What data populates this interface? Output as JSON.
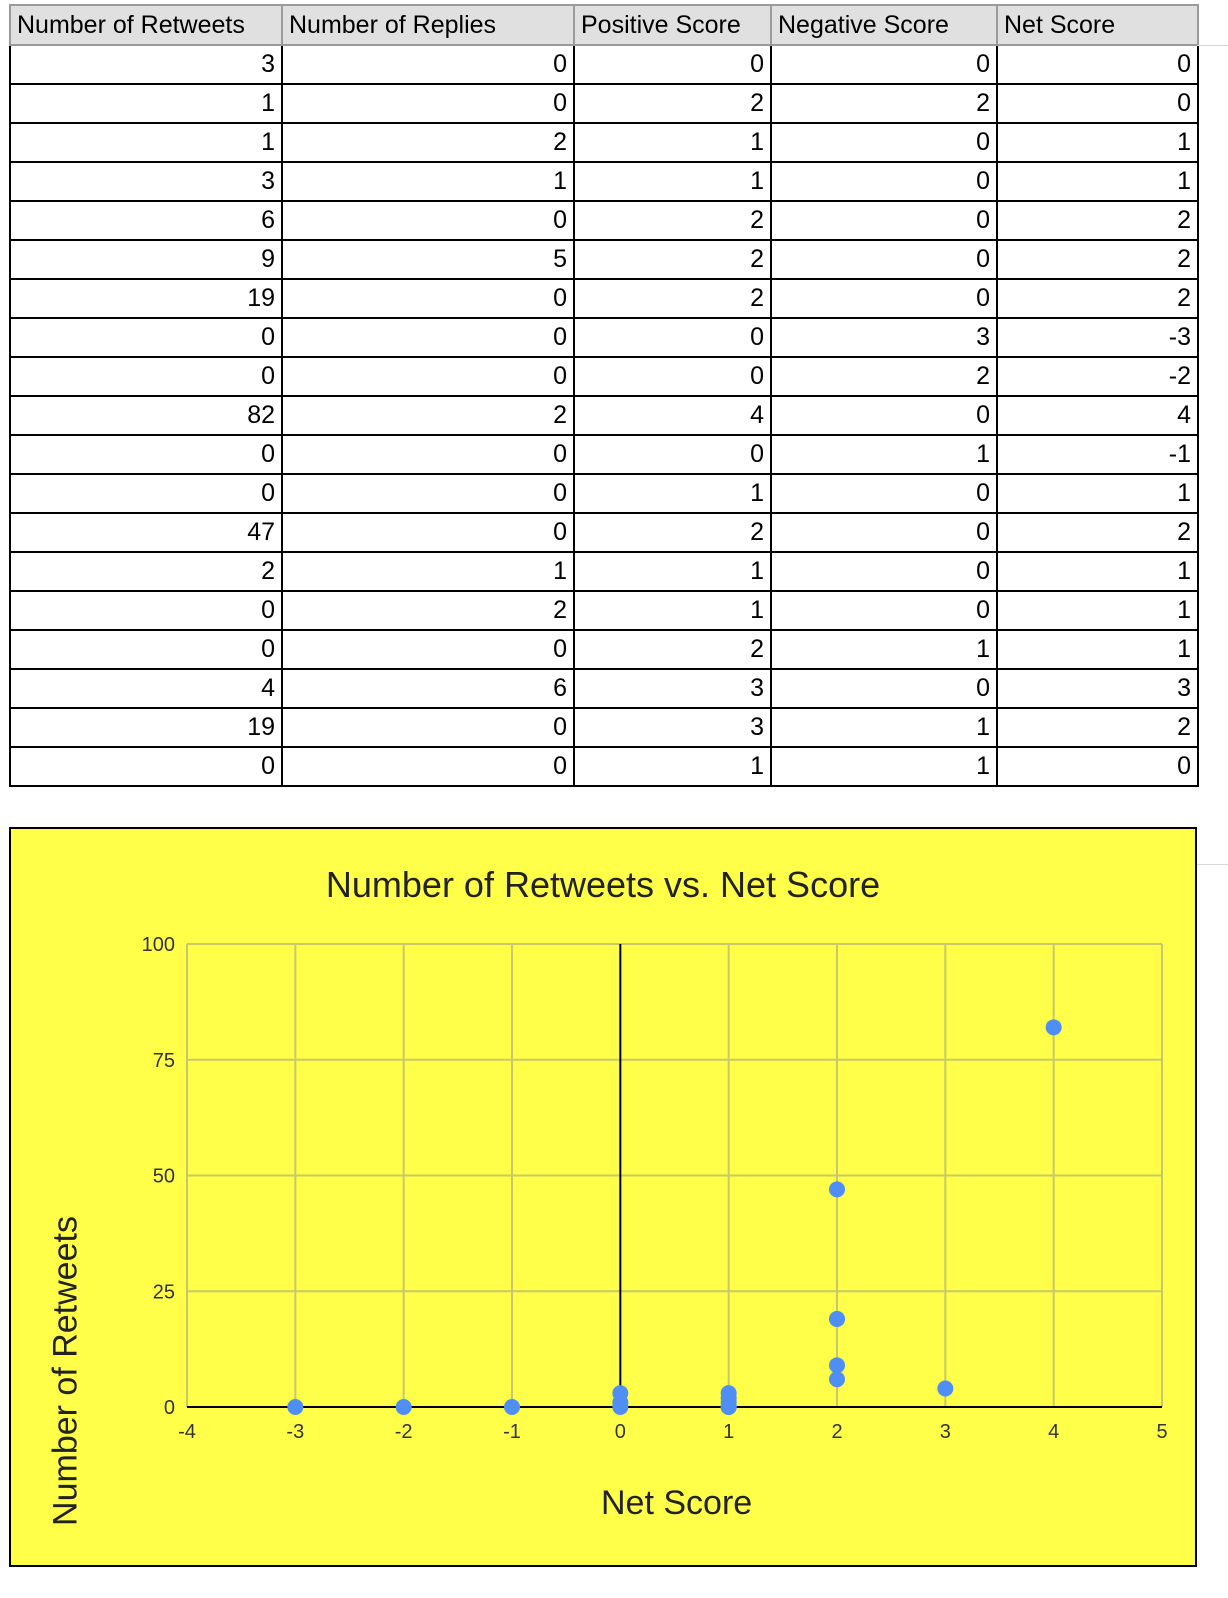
{
  "table": {
    "headers": [
      "Number of Retweets",
      "Number of Replies",
      "Positive Score",
      "Negative Score",
      "Net Score"
    ],
    "rows": [
      [
        3,
        0,
        0,
        0,
        0
      ],
      [
        1,
        0,
        2,
        2,
        0
      ],
      [
        1,
        2,
        1,
        0,
        1
      ],
      [
        3,
        1,
        1,
        0,
        1
      ],
      [
        6,
        0,
        2,
        0,
        2
      ],
      [
        9,
        5,
        2,
        0,
        2
      ],
      [
        19,
        0,
        2,
        0,
        2
      ],
      [
        0,
        0,
        0,
        3,
        -3
      ],
      [
        0,
        0,
        0,
        2,
        -2
      ],
      [
        82,
        2,
        4,
        0,
        4
      ],
      [
        0,
        0,
        0,
        1,
        -1
      ],
      [
        0,
        0,
        1,
        0,
        1
      ],
      [
        47,
        0,
        2,
        0,
        2
      ],
      [
        2,
        1,
        1,
        0,
        1
      ],
      [
        0,
        2,
        1,
        0,
        1
      ],
      [
        0,
        0,
        2,
        1,
        1
      ],
      [
        4,
        6,
        3,
        0,
        3
      ],
      [
        19,
        0,
        3,
        1,
        2
      ],
      [
        0,
        0,
        1,
        1,
        0
      ]
    ]
  },
  "chart_data": {
    "type": "scatter",
    "title": "Number of Retweets vs. Net Score",
    "xlabel": "Net Score",
    "ylabel": "Number of Retweets",
    "xlim": [
      -4,
      5
    ],
    "ylim": [
      0,
      100
    ],
    "xticks": [
      "-4",
      "-3",
      "-2",
      "-1",
      "0",
      "1",
      "2",
      "3",
      "4",
      "5"
    ],
    "yticks": [
      "0",
      "25",
      "50",
      "75",
      "100"
    ],
    "grid": true,
    "background_color": "#ffff4a",
    "gridline_color": "#c8c86a",
    "point_color": "#4f8ef5",
    "series": [
      {
        "points": [
          {
            "x": 0,
            "y": 3
          },
          {
            "x": 0,
            "y": 1
          },
          {
            "x": 1,
            "y": 1
          },
          {
            "x": 1,
            "y": 3
          },
          {
            "x": 2,
            "y": 6
          },
          {
            "x": 2,
            "y": 9
          },
          {
            "x": 2,
            "y": 19
          },
          {
            "x": -3,
            "y": 0
          },
          {
            "x": -2,
            "y": 0
          },
          {
            "x": 4,
            "y": 82
          },
          {
            "x": -1,
            "y": 0
          },
          {
            "x": 1,
            "y": 0
          },
          {
            "x": 2,
            "y": 47
          },
          {
            "x": 1,
            "y": 2
          },
          {
            "x": 1,
            "y": 0
          },
          {
            "x": 1,
            "y": 0
          },
          {
            "x": 3,
            "y": 4
          },
          {
            "x": 2,
            "y": 19
          },
          {
            "x": 0,
            "y": 0
          }
        ]
      }
    ]
  }
}
